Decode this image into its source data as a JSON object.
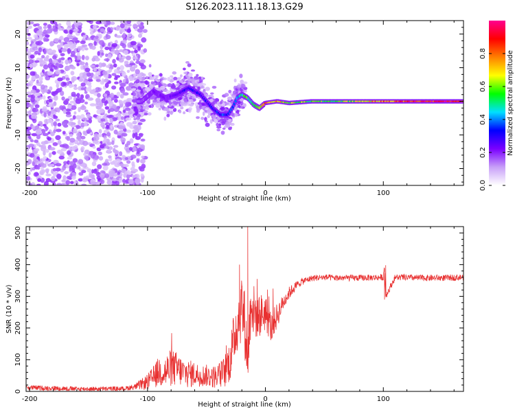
{
  "chart_data": [
    {
      "type": "heatmap",
      "title": "S126.2023.111.18.13.G29",
      "xlabel": "Height of straight line (km)",
      "ylabel": "Frequency (Hz)",
      "xlim": [
        -203,
        168
      ],
      "ylim": [
        -25,
        24
      ],
      "x_ticks": [
        -200,
        -100,
        0,
        100
      ],
      "y_ticks": [
        -20,
        -10,
        0,
        10,
        20
      ],
      "colorbar": {
        "label": "Normalized spectral amplitude",
        "range": [
          0,
          1
        ],
        "ticks": [
          0.0,
          0.2,
          0.4,
          0.6,
          0.8
        ],
        "colors": [
          "#ffffff",
          "#c8a0f8",
          "#7a00ff",
          "#0000ff",
          "#00e0ff",
          "#00ff00",
          "#ffff00",
          "#ff8000",
          "#ff0000",
          "#ff0090"
        ]
      },
      "signal_track": {
        "x": [
          -105,
          -95,
          -85,
          -75,
          -65,
          -55,
          -45,
          -38,
          -32,
          -28,
          -24,
          -20,
          -15,
          -10,
          -5,
          0,
          10,
          20,
          40,
          60,
          80,
          100,
          120,
          140,
          168
        ],
        "freq": [
          0,
          3,
          1,
          2,
          4,
          2,
          -2,
          -4,
          -4,
          -2,
          1,
          2,
          1,
          -1,
          -2,
          -0.5,
          0,
          -0.5,
          0,
          0,
          0,
          0,
          0,
          0,
          0
        ],
        "amplitude": [
          0.15,
          0.2,
          0.2,
          0.25,
          0.3,
          0.3,
          0.3,
          0.35,
          0.35,
          0.4,
          0.45,
          0.5,
          0.55,
          0.55,
          0.6,
          0.75,
          0.7,
          0.6,
          0.55,
          0.55,
          0.65,
          0.75,
          0.85,
          0.9,
          0.92
        ]
      },
      "noise_region": {
        "x_from": -203,
        "x_to": -110,
        "freq_spread": 24
      }
    },
    {
      "type": "line",
      "xlabel": "Height of straight line (km)",
      "ylabel": "SNR (10 * v/v)",
      "xlim": [
        -203,
        168
      ],
      "ylim": [
        0,
        520
      ],
      "x_ticks": [
        -200,
        -100,
        0,
        100
      ],
      "y_ticks": [
        0,
        100,
        200,
        300,
        400,
        500
      ],
      "series": [
        {
          "name": "SNR",
          "color": "#e83030",
          "x": [
            -203,
            -180,
            -160,
            -140,
            -120,
            -110,
            -100,
            -95,
            -90,
            -85,
            -80,
            -75,
            -70,
            -65,
            -60,
            -55,
            -50,
            -45,
            -40,
            -35,
            -30,
            -25,
            -20,
            -18,
            -15,
            -12,
            -10,
            -5,
            0,
            5,
            10,
            15,
            20,
            25,
            30,
            35,
            40,
            50,
            60,
            80,
            100,
            101,
            102,
            110,
            130,
            150,
            168
          ],
          "y": [
            12,
            10,
            8,
            8,
            9,
            15,
            30,
            45,
            65,
            60,
            75,
            70,
            60,
            55,
            55,
            50,
            50,
            45,
            50,
            60,
            100,
            200,
            270,
            230,
            100,
            300,
            250,
            240,
            250,
            200,
            240,
            280,
            310,
            330,
            345,
            352,
            358,
            360,
            358,
            358,
            360,
            395,
            300,
            360,
            358,
            358,
            360
          ],
          "noise_amplitude": [
            8,
            8,
            7,
            7,
            7,
            10,
            25,
            35,
            50,
            55,
            60,
            55,
            45,
            45,
            40,
            35,
            35,
            35,
            40,
            50,
            70,
            90,
            110,
            110,
            80,
            100,
            90,
            70,
            60,
            50,
            40,
            25,
            20,
            15,
            12,
            10,
            10,
            10,
            10,
            10,
            10,
            10,
            10,
            10,
            10,
            10,
            10
          ],
          "spikes": [
            {
              "x": -15,
              "y": 520
            },
            {
              "x": -22,
              "y": 400
            },
            {
              "x": -7,
              "y": 355
            },
            {
              "x": 102,
              "y": 398
            },
            {
              "x": 101,
              "y": 290
            }
          ]
        }
      ]
    }
  ]
}
